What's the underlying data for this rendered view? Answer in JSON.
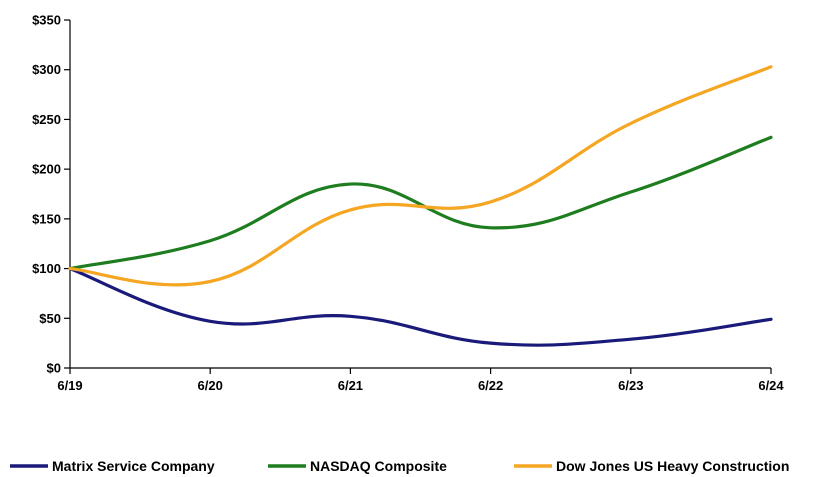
{
  "chart_data": {
    "type": "line",
    "x": [
      "6/19",
      "6/20",
      "6/21",
      "6/22",
      "6/23",
      "6/24"
    ],
    "ylim": [
      0,
      350
    ],
    "yticks": [
      0,
      50,
      100,
      150,
      200,
      250,
      300,
      350
    ],
    "ytick_labels": [
      "$0",
      "$50",
      "$100",
      "$150",
      "$200",
      "$250",
      "$300",
      "$350"
    ],
    "grid": false,
    "legend_position": "bottom",
    "series": [
      {
        "name": "Matrix Service Company",
        "color": "#1a1a7a",
        "values": [
          100,
          47,
          52,
          25,
          29,
          49
        ]
      },
      {
        "name": "NASDAQ Composite",
        "color": "#1e7d1e",
        "values": [
          100,
          128,
          185,
          141,
          177,
          232
        ]
      },
      {
        "name": "Dow Jones US Heavy Construction",
        "color": "#f5a623",
        "values": [
          100,
          87,
          159,
          167,
          246,
          303
        ]
      }
    ]
  }
}
